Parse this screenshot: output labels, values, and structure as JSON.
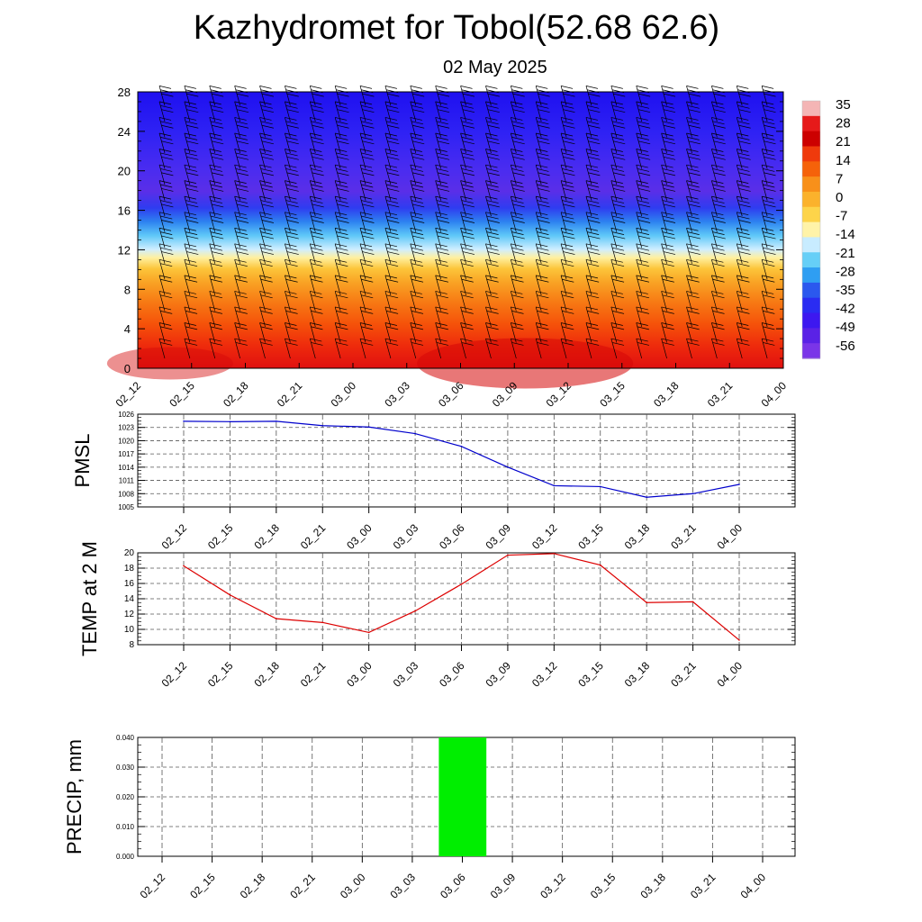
{
  "header": {
    "title": "Kazhydromet for Tobol(52.68 62.6)",
    "date": "02 May 2025"
  },
  "colors": {
    "pmsl_line": "#0000cc",
    "temp_line": "#dd0000",
    "precip_bar": "#00ee00",
    "grid": "#555555",
    "barb": "#000000"
  },
  "chart_data": [
    {
      "id": "cross-section",
      "type": "heatmap",
      "title": "",
      "xlabel": "",
      "ylabel": "",
      "x": [
        "02_12",
        "02_15",
        "02_18",
        "02_21",
        "03_00",
        "03_03",
        "03_06",
        "03_09",
        "03_12",
        "03_15",
        "03_18",
        "03_21",
        "04_00"
      ],
      "y_ticks": [
        0,
        4,
        8,
        12,
        16,
        20,
        24,
        28
      ],
      "ylim": [
        0,
        28
      ],
      "colorbar": {
        "labels": [
          "35",
          "28",
          "21",
          "14",
          "7",
          "0",
          "-7",
          "-14",
          "-21",
          "-28",
          "-35",
          "-42",
          "-49",
          "-56"
        ],
        "range": [
          -63,
          35
        ]
      },
      "temperature_by_level_approx": [
        {
          "level": 0,
          "value": 18
        },
        {
          "level": 4,
          "value": 14
        },
        {
          "level": 8,
          "value": 6
        },
        {
          "level": 11,
          "value": -4
        },
        {
          "level": 12.5,
          "value": -13
        },
        {
          "level": 14,
          "value": -25
        },
        {
          "level": 16,
          "value": -42
        },
        {
          "level": 18,
          "value": -56
        },
        {
          "level": 20,
          "value": -58
        },
        {
          "level": 24,
          "value": -60
        },
        {
          "level": 28,
          "value": -62
        }
      ],
      "wind_barbs": "westerly, strengthening with height"
    },
    {
      "id": "pmsl",
      "type": "line",
      "ylabel": "PMSL",
      "x": [
        "02_12",
        "02_15",
        "02_18",
        "02_21",
        "03_00",
        "03_03",
        "03_06",
        "03_09",
        "03_12",
        "03_15",
        "03_18",
        "03_21",
        "04_00"
      ],
      "y_ticks": [
        1005,
        1008,
        1011,
        1014,
        1017,
        1020,
        1023,
        1026
      ],
      "ylim": [
        1005,
        1026
      ],
      "series": [
        {
          "values": [
            1024.4,
            1024.3,
            1024.4,
            1023.4,
            1023.1,
            1021.6,
            1018.7,
            1014.0,
            1009.8,
            1009.6,
            1007.2,
            1008.0,
            1010.1
          ]
        }
      ]
    },
    {
      "id": "temp2m",
      "type": "line",
      "ylabel": "TEMP at 2 M",
      "x": [
        "02_12",
        "02_15",
        "02_18",
        "02_21",
        "03_00",
        "03_03",
        "03_06",
        "03_09",
        "03_12",
        "03_15",
        "03_18",
        "03_21",
        "04_00"
      ],
      "y_ticks": [
        8,
        10,
        12,
        14,
        16,
        18,
        20
      ],
      "ylim": [
        8,
        20
      ],
      "series": [
        {
          "values": [
            18.3,
            14.5,
            11.4,
            10.9,
            9.6,
            12.4,
            15.9,
            19.7,
            19.9,
            18.4,
            13.5,
            13.6,
            8.6
          ]
        }
      ]
    },
    {
      "id": "precip",
      "type": "bar",
      "ylabel": "PRECIP, mm",
      "categories": [
        "02_12",
        "02_15",
        "02_18",
        "02_21",
        "03_00",
        "03_03",
        "03_06",
        "03_09",
        "03_12",
        "03_15",
        "03_18",
        "03_21",
        "04_00"
      ],
      "y_ticks": [
        "0.000",
        "0.010",
        "0.020",
        "0.030",
        "0.040"
      ],
      "ylim": [
        0,
        0.04
      ],
      "values": [
        0,
        0,
        0,
        0,
        0,
        0,
        0.04,
        0,
        0,
        0,
        0,
        0,
        0
      ]
    }
  ]
}
